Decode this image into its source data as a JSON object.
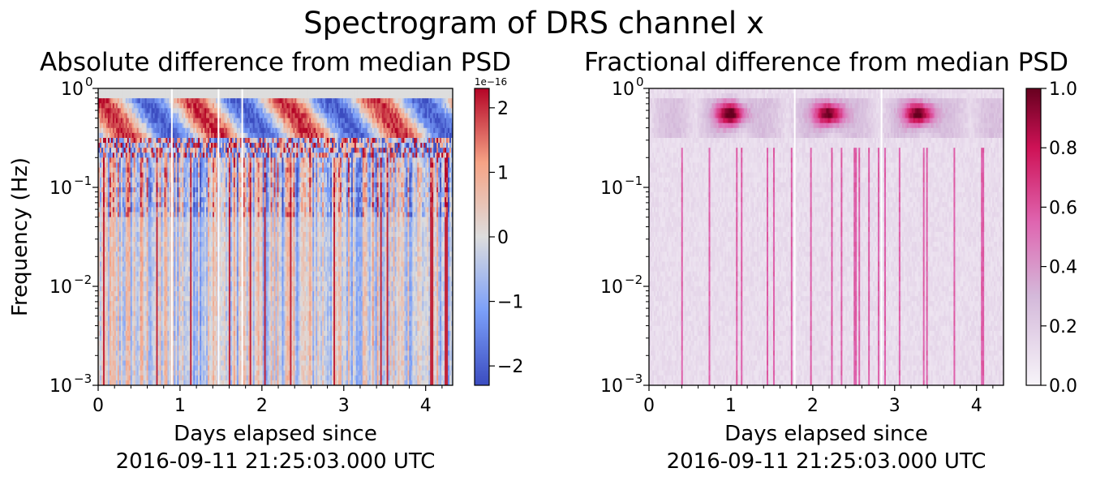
{
  "suptitle": "Spectrogram of DRS channel x",
  "chart_data": [
    {
      "type": "heatmap",
      "title": "Absolute difference from median PSD",
      "xlabel": "Days elapsed since\n2016-09-11 21:25:03.000 UTC",
      "ylabel": "Frequency (Hz)",
      "xlim": [
        0,
        4.33
      ],
      "ylim": [
        0.001,
        1
      ],
      "yscale": "log",
      "xticks": [
        "0",
        "1",
        "2",
        "3",
        "4"
      ],
      "yticks_base": "10",
      "yticks_exp": [
        "0",
        "−1",
        "−2",
        "−3"
      ],
      "colormap": "coolwarm",
      "colorbar": {
        "range": [
          -2.3,
          2.3
        ],
        "ticks": [
          "2",
          "1",
          "0",
          "−1",
          "−2"
        ],
        "tick_values": [
          2,
          1,
          0,
          -1,
          -2
        ],
        "offset_text": "1e−16"
      },
      "features": {
        "band_frequency_hz": [
          0.3,
          0.8
        ],
        "band_period_days": 1.12,
        "mid_band_frequency_hz": 0.25,
        "gaps_days": [
          0.9,
          1.47,
          1.76
        ]
      }
    },
    {
      "type": "heatmap",
      "title": "Fractional difference from median PSD",
      "xlabel": "Days elapsed since\n2016-09-11 21:25:03.000 UTC",
      "ylabel": "",
      "xlim": [
        0,
        4.33
      ],
      "ylim": [
        0.001,
        1
      ],
      "yscale": "log",
      "xticks": [
        "0",
        "1",
        "2",
        "3",
        "4"
      ],
      "yticks_base": "10",
      "yticks_exp": [
        "0",
        "−1",
        "−2",
        "−3"
      ],
      "colormap": "PuRd",
      "colorbar": {
        "range": [
          0.0,
          1.0
        ],
        "ticks": [
          "1.0",
          "0.8",
          "0.6",
          "0.4",
          "0.2",
          "0.0"
        ],
        "tick_values": [
          1.0,
          0.8,
          0.6,
          0.4,
          0.2,
          0.0
        ]
      },
      "features": {
        "hot_spots_days": [
          1.0,
          2.2,
          3.3
        ],
        "hot_spot_frequency_hz": 0.55,
        "gaps_days": [
          1.78,
          2.84
        ]
      }
    }
  ]
}
